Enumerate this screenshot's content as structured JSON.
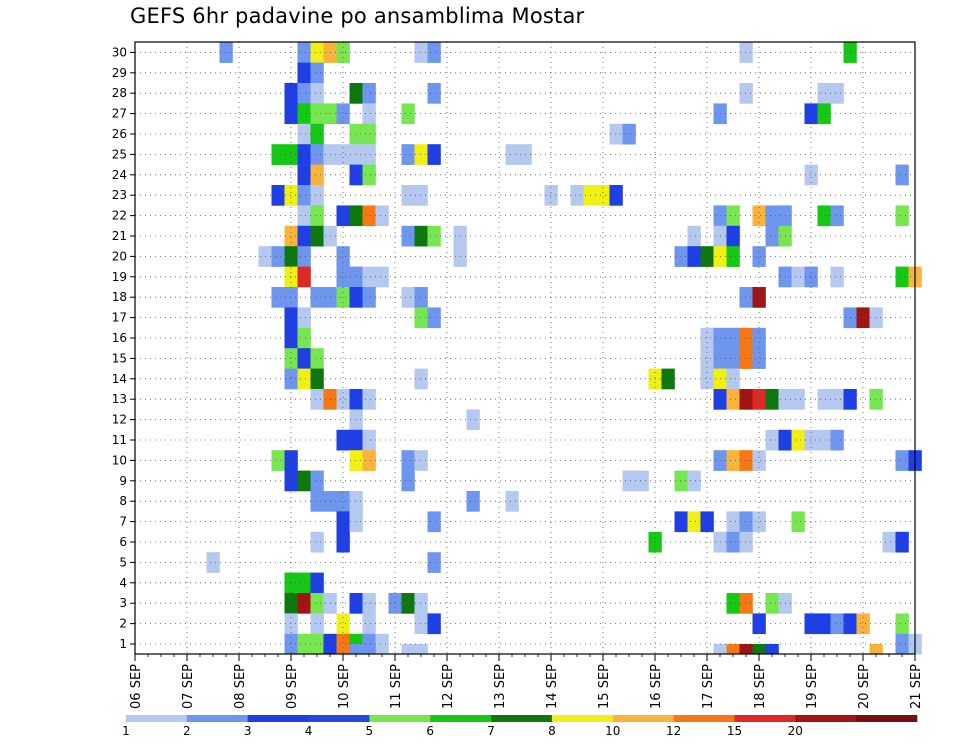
{
  "chart_data": {
    "type": "heatmap",
    "title": "GEFS 6hr padavine po ansamblima Mostar",
    "xlabel": "",
    "ylabel": "",
    "x_tick_labels": [
      "06 SEP",
      "07 SEP",
      "08 SEP",
      "09 SEP",
      "10 SEP",
      "11 SEP",
      "12 SEP",
      "13 SEP",
      "14 SEP",
      "15 SEP",
      "16 SEP",
      "17 SEP",
      "18 SEP",
      "19 SEP",
      "20 SEP",
      "21 SEP"
    ],
    "y_tick_labels": [
      "1",
      "2",
      "3",
      "4",
      "5",
      "6",
      "7",
      "8",
      "9",
      "10",
      "11",
      "12",
      "13",
      "14",
      "15",
      "16",
      "17",
      "18",
      "19",
      "20",
      "21",
      "22",
      "23",
      "24",
      "25",
      "26",
      "27",
      "28",
      "29",
      "30"
    ],
    "x_unit": "6-hour step from 06 SEP 00Z",
    "x_range": [
      0,
      60
    ],
    "y_range": [
      0,
      30
    ],
    "grid": "dotted",
    "legend": {
      "position": "bottom",
      "labels": [
        "1",
        "2",
        "3",
        "4",
        "5",
        "6",
        "7",
        "8",
        "10",
        "12",
        "15",
        "20"
      ],
      "colors": [
        "#b4c8f0",
        "#6e96ee",
        "#1e3ee6",
        "#2448d8",
        "#78e650",
        "#14c814",
        "#0e780e",
        "#f0f014",
        "#fab43c",
        "#f57814",
        "#e02828",
        "#a01414",
        "#7a0f0f"
      ]
    },
    "cells": [
      [
        30,
        7,
        "#6e96ee"
      ],
      [
        30,
        13,
        "#6e96ee"
      ],
      [
        30,
        14,
        "#f0f014"
      ],
      [
        30,
        15,
        "#fab43c"
      ],
      [
        30,
        16,
        "#78e650"
      ],
      [
        30,
        22,
        "#b4c8f0"
      ],
      [
        30,
        23,
        "#6e96ee"
      ],
      [
        30,
        47,
        "#b4c8f0"
      ],
      [
        30,
        55,
        "#14c814"
      ],
      [
        29,
        13,
        "#1e3ee6"
      ],
      [
        29,
        14,
        "#6e96ee"
      ],
      [
        28,
        12,
        "#1e3ee6"
      ],
      [
        28,
        13,
        "#6e96ee"
      ],
      [
        28,
        14,
        "#b4c8f0"
      ],
      [
        28,
        17,
        "#0e780e"
      ],
      [
        28,
        18,
        "#6e96ee"
      ],
      [
        28,
        23,
        "#6e96ee"
      ],
      [
        28,
        47,
        "#b4c8f0"
      ],
      [
        28,
        53,
        "#b4c8f0"
      ],
      [
        28,
        54,
        "#b4c8f0"
      ],
      [
        27,
        12,
        "#1e3ee6"
      ],
      [
        27,
        13,
        "#14c814"
      ],
      [
        27,
        14,
        "#78e650"
      ],
      [
        27,
        15,
        "#78e650"
      ],
      [
        27,
        16,
        "#6e96ee"
      ],
      [
        27,
        18,
        "#b4c8f0"
      ],
      [
        27,
        21,
        "#78e650"
      ],
      [
        27,
        45,
        "#6e96ee"
      ],
      [
        27,
        52,
        "#1e3ee6"
      ],
      [
        27,
        53,
        "#14c814"
      ],
      [
        26,
        13,
        "#b4c8f0"
      ],
      [
        26,
        14,
        "#14c814"
      ],
      [
        26,
        17,
        "#78e650"
      ],
      [
        26,
        18,
        "#78e650"
      ],
      [
        26,
        37,
        "#b4c8f0"
      ],
      [
        26,
        38,
        "#6e96ee"
      ],
      [
        25,
        11,
        "#14c814"
      ],
      [
        25,
        12,
        "#14c814"
      ],
      [
        25,
        13,
        "#1e3ee6"
      ],
      [
        25,
        14,
        "#6e96ee"
      ],
      [
        25,
        15,
        "#b4c8f0"
      ],
      [
        25,
        16,
        "#b4c8f0"
      ],
      [
        25,
        17,
        "#b4c8f0"
      ],
      [
        25,
        18,
        "#b4c8f0"
      ],
      [
        25,
        21,
        "#6e96ee"
      ],
      [
        25,
        22,
        "#f0f014"
      ],
      [
        25,
        23,
        "#1e3ee6"
      ],
      [
        25,
        29,
        "#b4c8f0"
      ],
      [
        25,
        30,
        "#b4c8f0"
      ],
      [
        24,
        13,
        "#1e3ee6"
      ],
      [
        24,
        14,
        "#fab43c"
      ],
      [
        24,
        17,
        "#1e3ee6"
      ],
      [
        24,
        18,
        "#78e650"
      ],
      [
        24,
        52,
        "#b4c8f0"
      ],
      [
        24,
        59,
        "#6e96ee"
      ],
      [
        23,
        11,
        "#1e3ee6"
      ],
      [
        23,
        12,
        "#f0f014"
      ],
      [
        23,
        13,
        "#6e96ee"
      ],
      [
        23,
        14,
        "#b4c8f0"
      ],
      [
        23,
        21,
        "#b4c8f0"
      ],
      [
        23,
        22,
        "#b4c8f0"
      ],
      [
        23,
        32,
        "#b4c8f0"
      ],
      [
        23,
        34,
        "#b4c8f0"
      ],
      [
        23,
        35,
        "#f0f014"
      ],
      [
        23,
        36,
        "#f0f014"
      ],
      [
        23,
        37,
        "#1e3ee6"
      ],
      [
        22,
        13,
        "#b4c8f0"
      ],
      [
        22,
        14,
        "#78e650"
      ],
      [
        22,
        16,
        "#1e3ee6"
      ],
      [
        22,
        17,
        "#0e780e"
      ],
      [
        22,
        18,
        "#f57814"
      ],
      [
        22,
        19,
        "#b4c8f0"
      ],
      [
        22,
        45,
        "#6e96ee"
      ],
      [
        22,
        46,
        "#78e650"
      ],
      [
        22,
        48,
        "#fab43c"
      ],
      [
        22,
        49,
        "#6e96ee"
      ],
      [
        22,
        50,
        "#6e96ee"
      ],
      [
        22,
        53,
        "#14c814"
      ],
      [
        22,
        54,
        "#6e96ee"
      ],
      [
        22,
        59,
        "#78e650"
      ],
      [
        21,
        12,
        "#fab43c"
      ],
      [
        21,
        13,
        "#1e3ee6"
      ],
      [
        21,
        14,
        "#0e780e"
      ],
      [
        21,
        15,
        "#b4c8f0"
      ],
      [
        21,
        21,
        "#6e96ee"
      ],
      [
        21,
        22,
        "#0e780e"
      ],
      [
        21,
        23,
        "#78e650"
      ],
      [
        21,
        25,
        "#b4c8f0"
      ],
      [
        21,
        43,
        "#b4c8f0"
      ],
      [
        21,
        45,
        "#b4c8f0"
      ],
      [
        21,
        46,
        "#1e3ee6"
      ],
      [
        21,
        49,
        "#6e96ee"
      ],
      [
        21,
        50,
        "#78e650"
      ],
      [
        20,
        10,
        "#b4c8f0"
      ],
      [
        20,
        11,
        "#6e96ee"
      ],
      [
        20,
        12,
        "#0e780e"
      ],
      [
        20,
        13,
        "#6e96ee"
      ],
      [
        20,
        16,
        "#6e96ee"
      ],
      [
        20,
        25,
        "#b4c8f0"
      ],
      [
        20,
        42,
        "#6e96ee"
      ],
      [
        20,
        43,
        "#1e3ee6"
      ],
      [
        20,
        44,
        "#0e780e"
      ],
      [
        20,
        45,
        "#f0f014"
      ],
      [
        20,
        46,
        "#14c814"
      ],
      [
        20,
        48,
        "#6e96ee"
      ],
      [
        19,
        12,
        "#f0f014"
      ],
      [
        19,
        13,
        "#e02828"
      ],
      [
        19,
        16,
        "#6e96ee"
      ],
      [
        19,
        17,
        "#6e96ee"
      ],
      [
        19,
        18,
        "#b4c8f0"
      ],
      [
        19,
        19,
        "#b4c8f0"
      ],
      [
        19,
        50,
        "#6e96ee"
      ],
      [
        19,
        51,
        "#b4c8f0"
      ],
      [
        19,
        52,
        "#6e96ee"
      ],
      [
        19,
        54,
        "#b4c8f0"
      ],
      [
        19,
        59,
        "#14c814"
      ],
      [
        19,
        60,
        "#fab43c"
      ],
      [
        18,
        11,
        "#6e96ee"
      ],
      [
        18,
        12,
        "#6e96ee"
      ],
      [
        18,
        14,
        "#6e96ee"
      ],
      [
        18,
        15,
        "#6e96ee"
      ],
      [
        18,
        16,
        "#78e650"
      ],
      [
        18,
        17,
        "#1e3ee6"
      ],
      [
        18,
        18,
        "#6e96ee"
      ],
      [
        18,
        21,
        "#b4c8f0"
      ],
      [
        18,
        22,
        "#6e96ee"
      ],
      [
        18,
        47,
        "#6e96ee"
      ],
      [
        18,
        48,
        "#a01414"
      ],
      [
        17,
        12,
        "#1e3ee6"
      ],
      [
        17,
        13,
        "#b4c8f0"
      ],
      [
        17,
        22,
        "#78e650"
      ],
      [
        17,
        23,
        "#6e96ee"
      ],
      [
        17,
        55,
        "#6e96ee"
      ],
      [
        17,
        56,
        "#a01414"
      ],
      [
        17,
        57,
        "#b4c8f0"
      ],
      [
        16,
        12,
        "#1e3ee6"
      ],
      [
        16,
        13,
        "#78e650"
      ],
      [
        16,
        44,
        "#b4c8f0"
      ],
      [
        16,
        45,
        "#6e96ee"
      ],
      [
        16,
        46,
        "#6e96ee"
      ],
      [
        16,
        47,
        "#f57814"
      ],
      [
        16,
        48,
        "#6e96ee"
      ],
      [
        15,
        12,
        "#78e650"
      ],
      [
        15,
        13,
        "#1e3ee6"
      ],
      [
        15,
        14,
        "#78e650"
      ],
      [
        15,
        44,
        "#b4c8f0"
      ],
      [
        15,
        45,
        "#6e96ee"
      ],
      [
        15,
        46,
        "#6e96ee"
      ],
      [
        15,
        47,
        "#f57814"
      ],
      [
        15,
        48,
        "#6e96ee"
      ],
      [
        14,
        12,
        "#6e96ee"
      ],
      [
        14,
        13,
        "#f0f014"
      ],
      [
        14,
        14,
        "#0e780e"
      ],
      [
        14,
        22,
        "#b4c8f0"
      ],
      [
        14,
        40,
        "#f0f014"
      ],
      [
        14,
        41,
        "#0e780e"
      ],
      [
        14,
        44,
        "#b4c8f0"
      ],
      [
        14,
        45,
        "#f0f014"
      ],
      [
        14,
        46,
        "#b4c8f0"
      ],
      [
        13,
        14,
        "#b4c8f0"
      ],
      [
        13,
        15,
        "#f57814"
      ],
      [
        13,
        16,
        "#b4c8f0"
      ],
      [
        13,
        17,
        "#1e3ee6"
      ],
      [
        13,
        18,
        "#b4c8f0"
      ],
      [
        13,
        45,
        "#1e3ee6"
      ],
      [
        13,
        46,
        "#fab43c"
      ],
      [
        13,
        47,
        "#a01414"
      ],
      [
        13,
        48,
        "#e02828"
      ],
      [
        13,
        49,
        "#0e780e"
      ],
      [
        13,
        50,
        "#b4c8f0"
      ],
      [
        13,
        51,
        "#b4c8f0"
      ],
      [
        13,
        53,
        "#b4c8f0"
      ],
      [
        13,
        54,
        "#b4c8f0"
      ],
      [
        13,
        55,
        "#1e3ee6"
      ],
      [
        13,
        57,
        "#78e650"
      ],
      [
        12,
        17,
        "#b4c8f0"
      ],
      [
        12,
        26,
        "#b4c8f0"
      ],
      [
        11,
        16,
        "#1e3ee6"
      ],
      [
        11,
        17,
        "#1e3ee6"
      ],
      [
        11,
        18,
        "#b4c8f0"
      ],
      [
        11,
        49,
        "#b4c8f0"
      ],
      [
        11,
        50,
        "#1e3ee6"
      ],
      [
        11,
        51,
        "#f0f014"
      ],
      [
        11,
        52,
        "#b4c8f0"
      ],
      [
        11,
        53,
        "#b4c8f0"
      ],
      [
        11,
        54,
        "#6e96ee"
      ],
      [
        10,
        11,
        "#78e650"
      ],
      [
        10,
        12,
        "#1e3ee6"
      ],
      [
        10,
        17,
        "#f0f014"
      ],
      [
        10,
        18,
        "#fab43c"
      ],
      [
        10,
        21,
        "#6e96ee"
      ],
      [
        10,
        22,
        "#b4c8f0"
      ],
      [
        10,
        45,
        "#6e96ee"
      ],
      [
        10,
        46,
        "#fab43c"
      ],
      [
        10,
        47,
        "#f57814"
      ],
      [
        10,
        48,
        "#b4c8f0"
      ],
      [
        10,
        59,
        "#6e96ee"
      ],
      [
        10,
        60,
        "#1e3ee6"
      ],
      [
        9,
        12,
        "#1e3ee6"
      ],
      [
        9,
        13,
        "#0e780e"
      ],
      [
        9,
        14,
        "#6e96ee"
      ],
      [
        9,
        21,
        "#6e96ee"
      ],
      [
        9,
        38,
        "#b4c8f0"
      ],
      [
        9,
        39,
        "#b4c8f0"
      ],
      [
        9,
        42,
        "#78e650"
      ],
      [
        9,
        43,
        "#b4c8f0"
      ],
      [
        8,
        14,
        "#6e96ee"
      ],
      [
        8,
        15,
        "#6e96ee"
      ],
      [
        8,
        16,
        "#6e96ee"
      ],
      [
        8,
        17,
        "#b4c8f0"
      ],
      [
        8,
        26,
        "#6e96ee"
      ],
      [
        8,
        29,
        "#b4c8f0"
      ],
      [
        7,
        16,
        "#1e3ee6"
      ],
      [
        7,
        17,
        "#b4c8f0"
      ],
      [
        7,
        23,
        "#6e96ee"
      ],
      [
        7,
        42,
        "#1e3ee6"
      ],
      [
        7,
        43,
        "#f0f014"
      ],
      [
        7,
        44,
        "#1e3ee6"
      ],
      [
        7,
        46,
        "#b4c8f0"
      ],
      [
        7,
        47,
        "#6e96ee"
      ],
      [
        7,
        48,
        "#b4c8f0"
      ],
      [
        7,
        51,
        "#78e650"
      ],
      [
        6,
        14,
        "#b4c8f0"
      ],
      [
        6,
        16,
        "#1e3ee6"
      ],
      [
        6,
        40,
        "#14c814"
      ],
      [
        6,
        45,
        "#b4c8f0"
      ],
      [
        6,
        46,
        "#6e96ee"
      ],
      [
        6,
        47,
        "#b4c8f0"
      ],
      [
        6,
        58,
        "#b4c8f0"
      ],
      [
        6,
        59,
        "#1e3ee6"
      ],
      [
        5,
        6,
        "#b4c8f0"
      ],
      [
        5,
        23,
        "#6e96ee"
      ],
      [
        4,
        12,
        "#14c814"
      ],
      [
        4,
        13,
        "#14c814"
      ],
      [
        4,
        14,
        "#1e3ee6"
      ],
      [
        3,
        12,
        "#0e780e"
      ],
      [
        3,
        13,
        "#a01414"
      ],
      [
        3,
        14,
        "#78e650"
      ],
      [
        3,
        15,
        "#b4c8f0"
      ],
      [
        3,
        17,
        "#1e3ee6"
      ],
      [
        3,
        18,
        "#b4c8f0"
      ],
      [
        3,
        20,
        "#6e96ee"
      ],
      [
        3,
        21,
        "#0e780e"
      ],
      [
        3,
        22,
        "#b4c8f0"
      ],
      [
        3,
        46,
        "#14c814"
      ],
      [
        3,
        47,
        "#f57814"
      ],
      [
        3,
        49,
        "#78e650"
      ],
      [
        3,
        50,
        "#b4c8f0"
      ],
      [
        2,
        12,
        "#b4c8f0"
      ],
      [
        2,
        14,
        "#b4c8f0"
      ],
      [
        2,
        16,
        "#f0f014"
      ],
      [
        2,
        18,
        "#b4c8f0"
      ],
      [
        2,
        22,
        "#b4c8f0"
      ],
      [
        2,
        23,
        "#1e3ee6"
      ],
      [
        2,
        48,
        "#1e3ee6"
      ],
      [
        2,
        52,
        "#1e3ee6"
      ],
      [
        2,
        53,
        "#1e3ee6"
      ],
      [
        2,
        54,
        "#6e96ee"
      ],
      [
        2,
        55,
        "#1e3ee6"
      ],
      [
        2,
        56,
        "#fab43c"
      ],
      [
        2,
        59,
        "#78e650"
      ],
      [
        1,
        12,
        "#6e96ee"
      ],
      [
        1,
        13,
        "#78e650"
      ],
      [
        1,
        14,
        "#78e650"
      ],
      [
        1,
        15,
        "#1e3ee6"
      ],
      [
        1,
        16,
        "#f57814"
      ],
      [
        1,
        17,
        "#14c814"
      ],
      [
        1,
        18,
        "#6e96ee"
      ],
      [
        1,
        19,
        "#b4c8f0"
      ],
      [
        1,
        59,
        "#6e96ee"
      ],
      [
        1,
        60,
        "#b4c8f0"
      ],
      [
        0,
        17,
        "#6e96ee"
      ],
      [
        0,
        18,
        "#6e96ee"
      ],
      [
        0,
        21,
        "#b4c8f0"
      ],
      [
        0,
        22,
        "#b4c8f0"
      ],
      [
        0,
        45,
        "#b4c8f0"
      ],
      [
        0,
        46,
        "#f57814"
      ],
      [
        0,
        47,
        "#a01414"
      ],
      [
        0,
        48,
        "#0e780e"
      ],
      [
        0,
        49,
        "#1e3ee6"
      ],
      [
        0,
        57,
        "#fab43c"
      ]
    ]
  }
}
